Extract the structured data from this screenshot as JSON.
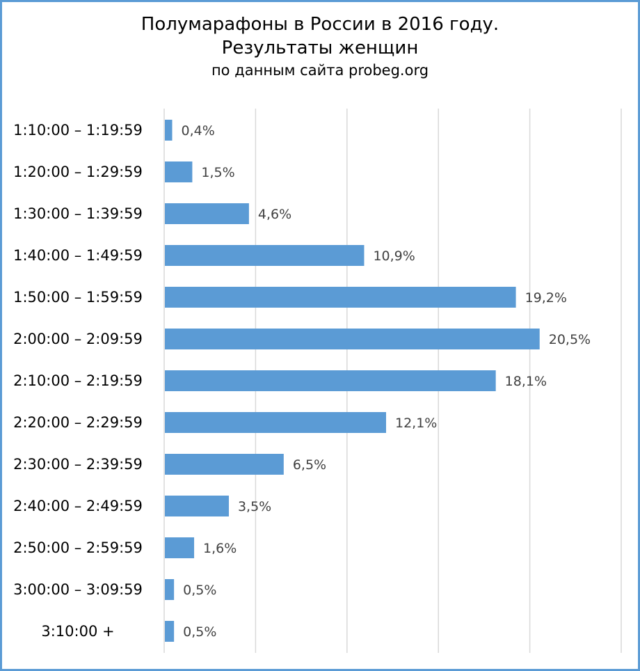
{
  "chart_data": {
    "type": "bar",
    "orientation": "horizontal",
    "title": "Полумарафоны в России в 2016 году.",
    "subtitle": "Результаты женщин",
    "caption": "по данным сайта probeg.org",
    "categories": [
      "1:10:00 – 1:19:59",
      "1:20:00 – 1:29:59",
      "1:30:00 – 1:39:59",
      "1:40:00 – 1:49:59",
      "1:50:00 – 1:59:59",
      "2:00:00 – 2:09:59",
      "2:10:00 – 2:19:59",
      "2:20:00 – 2:29:59",
      "2:30:00 – 2:39:59",
      "2:40:00 – 2:49:59",
      "2:50:00 – 2:59:59",
      "3:00:00 – 3:09:59",
      "3:10:00 +"
    ],
    "values": [
      0.4,
      1.5,
      4.6,
      10.9,
      19.2,
      20.5,
      18.1,
      12.1,
      6.5,
      3.5,
      1.6,
      0.5,
      0.5
    ],
    "data_labels": [
      "0,4%",
      "1,5%",
      "4,6%",
      "10,9%",
      "19,2%",
      "20,5%",
      "18,1%",
      "12,1%",
      "6,5%",
      "3,5%",
      "1,6%",
      "0,5%",
      "0,5%"
    ],
    "xlim": [
      0,
      25
    ],
    "x_gridlines": [
      0,
      5,
      10,
      15,
      20,
      25
    ],
    "grid": true,
    "legend": "none",
    "bar_color": "#5b9bd5",
    "grid_color": "#d9d9d9",
    "border_color": "#5b9bd5"
  }
}
